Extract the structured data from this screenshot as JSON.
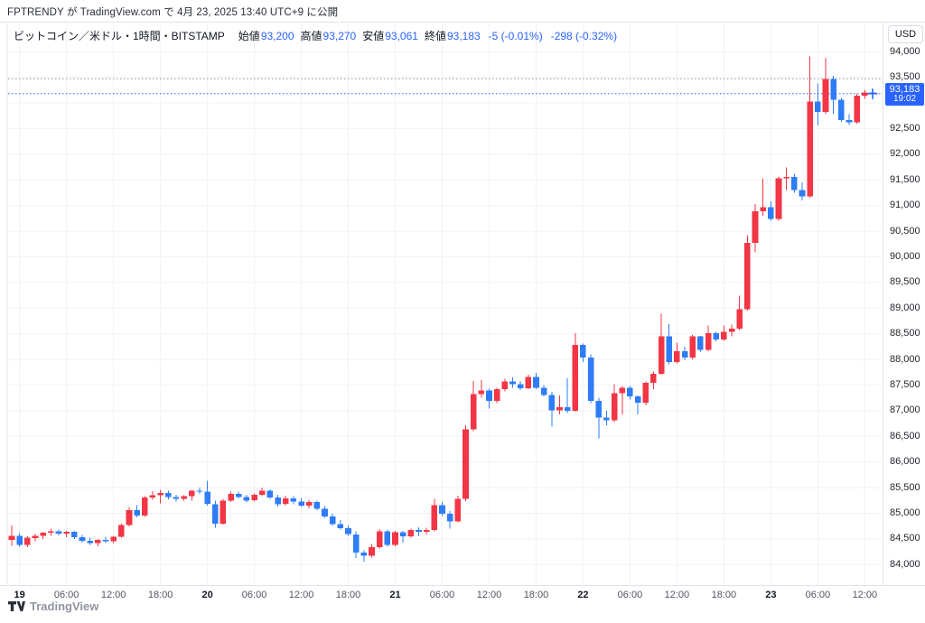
{
  "notice": {
    "text": "FPTRENDY が TradingView.com で 4月 23, 2025 13:40 UTC+9 に公開"
  },
  "legend": {
    "symbol": "ビットコイン／米ドル・1時間・BITSTAMP",
    "fields": [
      {
        "label": "始値",
        "value": "93,200"
      },
      {
        "label": "高値",
        "value": "93,270"
      },
      {
        "label": "安値",
        "value": "93,061"
      },
      {
        "label": "終値",
        "value": "93,183"
      }
    ],
    "changes": [
      "-5 (-0.01%)",
      "-298 (-0.32%)"
    ]
  },
  "axis_currency": "USD",
  "price_badge": {
    "price": "93,183",
    "countdown": "19:02"
  },
  "attribution": "TradingView",
  "colors": {
    "up": "#f23645",
    "down": "#2e7cf6",
    "badge": "#2962ff",
    "grid": "#f0f2f8",
    "axis_border": "#e0e3eb",
    "ref_gray": "#9598a1",
    "ref_blue": "#2962ff"
  },
  "chart_data": {
    "type": "candlestick",
    "title": "ビットコイン／米ドル・1時間・BITSTAMP",
    "exchange": "BITSTAMP",
    "interval": "1時間",
    "current_ohlc": {
      "open": 93200,
      "high": 93270,
      "low": 93061,
      "close": 93183
    },
    "y_min": 83600,
    "y_max": 94550,
    "grid_step": 500,
    "y_tick_labels": [
      "94,000",
      "93,500",
      "92,500",
      "92,000",
      "91,500",
      "91,000",
      "90,500",
      "90,000",
      "89,500",
      "89,000",
      "88,500",
      "88,000",
      "87,500",
      "87,000",
      "86,500",
      "86,000",
      "85,500",
      "85,000",
      "84,500",
      "84,000"
    ],
    "y_tick_prices": [
      94000,
      93500,
      92500,
      92000,
      91500,
      91000,
      90500,
      90000,
      89500,
      89000,
      88500,
      88000,
      87500,
      87000,
      86500,
      86000,
      85500,
      85000,
      84500,
      84000
    ],
    "x_ticks": [
      {
        "i": 1,
        "label": "19",
        "major": true
      },
      {
        "i": 7,
        "label": "06:00",
        "major": false
      },
      {
        "i": 13,
        "label": "12:00",
        "major": false
      },
      {
        "i": 19,
        "label": "18:00",
        "major": false
      },
      {
        "i": 25,
        "label": "20",
        "major": true
      },
      {
        "i": 31,
        "label": "06:00",
        "major": false
      },
      {
        "i": 37,
        "label": "12:00",
        "major": false
      },
      {
        "i": 43,
        "label": "18:00",
        "major": false
      },
      {
        "i": 49,
        "label": "21",
        "major": true
      },
      {
        "i": 55,
        "label": "06:00",
        "major": false
      },
      {
        "i": 61,
        "label": "12:00",
        "major": false
      },
      {
        "i": 67,
        "label": "18:00",
        "major": false
      },
      {
        "i": 73,
        "label": "22",
        "major": true
      },
      {
        "i": 79,
        "label": "06:00",
        "major": false
      },
      {
        "i": 85,
        "label": "12:00",
        "major": false
      },
      {
        "i": 91,
        "label": "18:00",
        "major": false
      },
      {
        "i": 97,
        "label": "23",
        "major": true
      },
      {
        "i": 103,
        "label": "06:00",
        "major": false
      },
      {
        "i": 109,
        "label": "12:00",
        "major": false
      }
    ],
    "reference_lines": [
      {
        "price": 93470,
        "color": "#9598a1"
      },
      {
        "price": 93183,
        "color": "#2962ff"
      }
    ],
    "candles": [
      [
        84480,
        84760,
        84370,
        84560
      ],
      [
        84560,
        84610,
        84350,
        84380
      ],
      [
        84380,
        84550,
        84340,
        84520
      ],
      [
        84520,
        84600,
        84450,
        84560
      ],
      [
        84560,
        84640,
        84500,
        84620
      ],
      [
        84620,
        84700,
        84560,
        84650
      ],
      [
        84650,
        84680,
        84570,
        84600
      ],
      [
        84600,
        84660,
        84530,
        84640
      ],
      [
        84640,
        84660,
        84500,
        84530
      ],
      [
        84530,
        84580,
        84430,
        84460
      ],
      [
        84460,
        84520,
        84380,
        84420
      ],
      [
        84420,
        84500,
        84360,
        84480
      ],
      [
        84480,
        84540,
        84420,
        84450
      ],
      [
        84450,
        84560,
        84420,
        84540
      ],
      [
        84540,
        84800,
        84520,
        84770
      ],
      [
        84770,
        85120,
        84740,
        85060
      ],
      [
        85060,
        85160,
        84920,
        84960
      ],
      [
        84960,
        85330,
        84930,
        85310
      ],
      [
        85310,
        85430,
        85260,
        85350
      ],
      [
        85350,
        85460,
        85190,
        85400
      ],
      [
        85400,
        85440,
        85270,
        85320
      ],
      [
        85320,
        85360,
        85230,
        85280
      ],
      [
        85280,
        85350,
        85250,
        85330
      ],
      [
        85330,
        85460,
        85250,
        85440
      ],
      [
        85440,
        85500,
        85380,
        85420
      ],
      [
        85420,
        85630,
        85150,
        85180
      ],
      [
        85180,
        85250,
        84720,
        84800
      ],
      [
        84800,
        85280,
        84780,
        85250
      ],
      [
        85250,
        85420,
        85220,
        85380
      ],
      [
        85380,
        85420,
        85290,
        85320
      ],
      [
        85320,
        85360,
        85210,
        85250
      ],
      [
        85250,
        85390,
        85230,
        85360
      ],
      [
        85360,
        85500,
        85330,
        85440
      ],
      [
        85440,
        85470,
        85280,
        85310
      ],
      [
        85310,
        85360,
        85130,
        85180
      ],
      [
        85180,
        85340,
        85150,
        85290
      ],
      [
        85290,
        85330,
        85180,
        85230
      ],
      [
        85230,
        85300,
        85120,
        85150
      ],
      [
        85150,
        85260,
        85100,
        85220
      ],
      [
        85220,
        85250,
        85060,
        85090
      ],
      [
        85090,
        85140,
        84910,
        84940
      ],
      [
        84940,
        84990,
        84760,
        84790
      ],
      [
        84790,
        84870,
        84680,
        84710
      ],
      [
        84710,
        84760,
        84560,
        84590
      ],
      [
        84590,
        84650,
        84130,
        84230
      ],
      [
        84230,
        84280,
        84060,
        84170
      ],
      [
        84170,
        84400,
        84140,
        84340
      ],
      [
        84340,
        84690,
        84310,
        84650
      ],
      [
        84650,
        84680,
        84350,
        84380
      ],
      [
        84380,
        84660,
        84360,
        84630
      ],
      [
        84630,
        84660,
        84430,
        84550
      ],
      [
        84550,
        84700,
        84520,
        84670
      ],
      [
        84670,
        84730,
        84550,
        84640
      ],
      [
        84640,
        84720,
        84590,
        84670
      ],
      [
        84670,
        85280,
        84650,
        85160
      ],
      [
        85160,
        85220,
        84950,
        84990
      ],
      [
        84990,
        85040,
        84700,
        84840
      ],
      [
        84840,
        85340,
        84820,
        85280
      ],
      [
        85280,
        86720,
        85240,
        86640
      ],
      [
        86640,
        87580,
        86600,
        87320
      ],
      [
        87320,
        87600,
        87250,
        87390
      ],
      [
        87390,
        87430,
        87040,
        87190
      ],
      [
        87190,
        87450,
        87150,
        87420
      ],
      [
        87420,
        87620,
        87380,
        87570
      ],
      [
        87570,
        87650,
        87450,
        87520
      ],
      [
        87520,
        87580,
        87400,
        87440
      ],
      [
        87440,
        87700,
        87420,
        87660
      ],
      [
        87660,
        87740,
        87420,
        87450
      ],
      [
        87450,
        87500,
        87280,
        87310
      ],
      [
        87310,
        87370,
        86690,
        87010
      ],
      [
        87010,
        87300,
        86930,
        87070
      ],
      [
        87070,
        87630,
        86950,
        87000
      ],
      [
        87000,
        88510,
        86980,
        88280
      ],
      [
        88280,
        88310,
        87950,
        88040
      ],
      [
        88040,
        88100,
        87150,
        87190
      ],
      [
        87190,
        87250,
        86460,
        86870
      ],
      [
        86870,
        87000,
        86720,
        86810
      ],
      [
        86810,
        87520,
        86780,
        87340
      ],
      [
        87340,
        87480,
        86930,
        87450
      ],
      [
        87450,
        87480,
        87220,
        87280
      ],
      [
        87280,
        87300,
        86930,
        87160
      ],
      [
        87160,
        87570,
        87100,
        87540
      ],
      [
        87540,
        87760,
        87420,
        87720
      ],
      [
        87720,
        88890,
        87700,
        88450
      ],
      [
        88450,
        88690,
        87900,
        87950
      ],
      [
        87950,
        88330,
        87920,
        88160
      ],
      [
        88160,
        88250,
        87980,
        88040
      ],
      [
        88040,
        88480,
        88000,
        88450
      ],
      [
        88450,
        88460,
        88150,
        88190
      ],
      [
        88190,
        88660,
        88160,
        88510
      ],
      [
        88510,
        88540,
        88350,
        88390
      ],
      [
        88390,
        88660,
        88360,
        88540
      ],
      [
        88540,
        88680,
        88450,
        88600
      ],
      [
        88600,
        89240,
        88570,
        88980
      ],
      [
        88980,
        90420,
        88950,
        90270
      ],
      [
        90270,
        91030,
        90090,
        90890
      ],
      [
        90890,
        91530,
        90800,
        90970
      ],
      [
        90970,
        91080,
        90700,
        90740
      ],
      [
        90740,
        91570,
        90700,
        91530
      ],
      [
        91530,
        91740,
        91300,
        91560
      ],
      [
        91560,
        91620,
        91250,
        91300
      ],
      [
        91300,
        91450,
        91100,
        91180
      ],
      [
        91180,
        93910,
        91150,
        93030
      ],
      [
        93030,
        93380,
        92560,
        92820
      ],
      [
        92820,
        93880,
        92780,
        93470
      ],
      [
        93470,
        93530,
        92790,
        93060
      ],
      [
        93060,
        93100,
        92630,
        92670
      ],
      [
        92670,
        92780,
        92570,
        92620
      ],
      [
        92620,
        93180,
        92600,
        93140
      ],
      [
        93140,
        93260,
        93080,
        93200
      ],
      [
        93200,
        93270,
        93061,
        93183
      ]
    ]
  }
}
